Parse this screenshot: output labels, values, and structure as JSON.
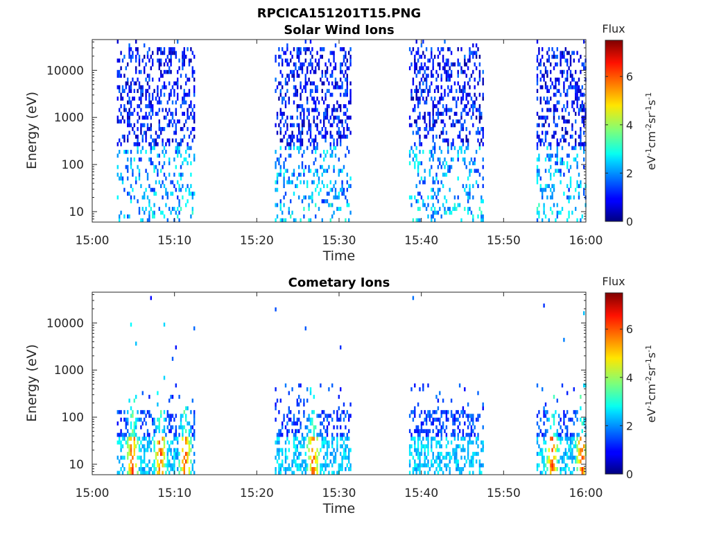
{
  "figure": {
    "title": "RPCICA151201T15.PNG"
  },
  "chart_data": [
    {
      "type": "heatmap",
      "title": "Solar Wind Ions",
      "xlabel": "Time",
      "ylabel": "Energy (eV)",
      "x_ticks": [
        "15:00",
        "15:10",
        "15:20",
        "15:30",
        "15:40",
        "15:50",
        "16:00"
      ],
      "y_scale": "log",
      "y_ticks": [
        "10",
        "100",
        "1000",
        "10000"
      ],
      "ylim": [
        6,
        45000
      ],
      "colorbar": {
        "title": "Flux",
        "label": "eV^-1 cm^-2 sr^-1 s^-1",
        "ticks": [
          "0",
          "2",
          "4",
          "6"
        ],
        "range": [
          0,
          7.5
        ],
        "colormap": "jet"
      },
      "data_blocks_minutes": [
        [
          3,
          12.5
        ],
        [
          22.2,
          31.5
        ],
        [
          38.5,
          47.5
        ],
        [
          54,
          60
        ]
      ],
      "grid": false
    },
    {
      "type": "heatmap",
      "title": "Cometary Ions",
      "xlabel": "Time",
      "ylabel": "Energy (eV)",
      "x_ticks": [
        "15:00",
        "15:10",
        "15:20",
        "15:30",
        "15:40",
        "15:50",
        "16:00"
      ],
      "y_scale": "log",
      "y_ticks": [
        "10",
        "100",
        "1000",
        "10000"
      ],
      "ylim": [
        6,
        45000
      ],
      "colorbar": {
        "title": "Flux",
        "label": "eV^-1 cm^-2 sr^-1 s^-1",
        "ticks": [
          "0",
          "2",
          "4",
          "6"
        ],
        "range": [
          0,
          7.5
        ],
        "colormap": "jet"
      },
      "data_blocks_minutes": [
        [
          3,
          12.5
        ],
        [
          22.2,
          31.5
        ],
        [
          38.5,
          47.5
        ],
        [
          54,
          60
        ]
      ],
      "grid": false
    }
  ]
}
